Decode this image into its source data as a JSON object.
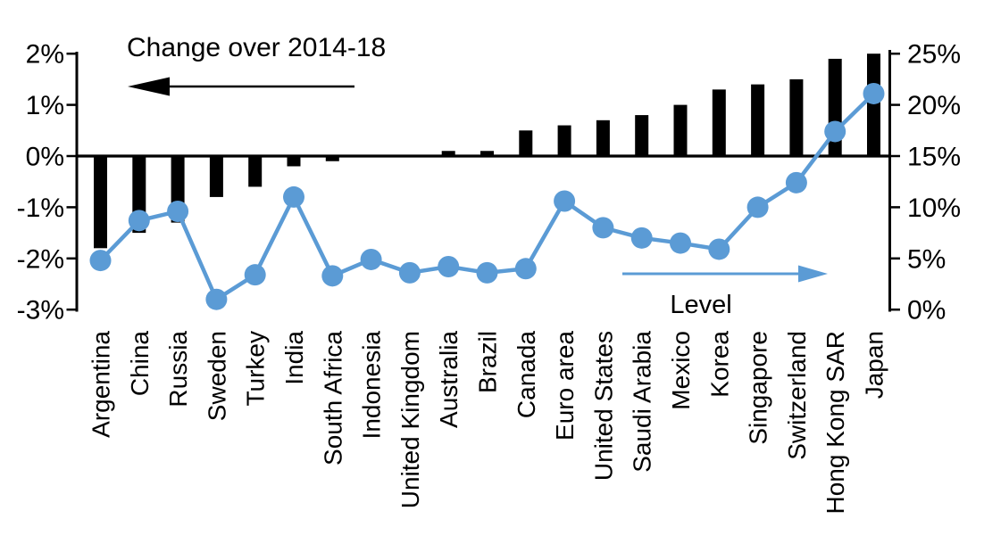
{
  "chart_data": {
    "type": "bar",
    "subtype": "dual-axis-bar-line-combo",
    "title": "",
    "categories": [
      "Argentina",
      "China",
      "Russia",
      "Sweden",
      "Turkey",
      "India",
      "South Africa",
      "Indonesia",
      "United Kingdom",
      "Australia",
      "Brazil",
      "Canada",
      "Euro area",
      "United States",
      "Saudi Arabia",
      "Mexico",
      "Korea",
      "Singapore",
      "Switzerland",
      "Hong Kong SAR",
      "Japan"
    ],
    "series": [
      {
        "name": "Change over 2014-18",
        "type": "bar",
        "axis": "left",
        "color": "#000000",
        "values": [
          -1.8,
          -1.5,
          -1.3,
          -0.8,
          -0.6,
          -0.2,
          -0.1,
          0,
          0,
          0.1,
          0.1,
          0.5,
          0.6,
          0.7,
          0.8,
          1.0,
          1.3,
          1.4,
          1.5,
          1.9,
          2.0
        ]
      },
      {
        "name": "Level",
        "type": "line",
        "axis": "right",
        "color": "#5b9bd5",
        "values": [
          4.8,
          8.7,
          9.6,
          1.0,
          3.4,
          11.0,
          3.3,
          4.9,
          3.6,
          4.2,
          3.6,
          4.0,
          10.6,
          8.0,
          7.0,
          6.5,
          5.9,
          10.0,
          12.4,
          17.4,
          21.1
        ]
      }
    ],
    "left_axis": {
      "tick_labels": [
        "2%",
        "1%",
        "0%",
        "-1%",
        "-2%",
        "-3%"
      ],
      "tick_values": [
        2,
        1,
        0,
        -1,
        -2,
        -3
      ],
      "min": -3,
      "max": 2
    },
    "right_axis": {
      "tick_labels": [
        "25%",
        "20%",
        "15%",
        "10%",
        "5%",
        "0%"
      ],
      "tick_values": [
        25,
        20,
        15,
        10,
        5,
        0
      ],
      "min": 0,
      "max": 25
    },
    "annotations": [
      {
        "text": "Change over 2014-18",
        "arrow": "left",
        "color": "#000000"
      },
      {
        "text": "Level",
        "arrow": "right",
        "color": "#5b9bd5"
      }
    ],
    "grid": false,
    "legend_position": "none",
    "background": "#ffffff"
  }
}
